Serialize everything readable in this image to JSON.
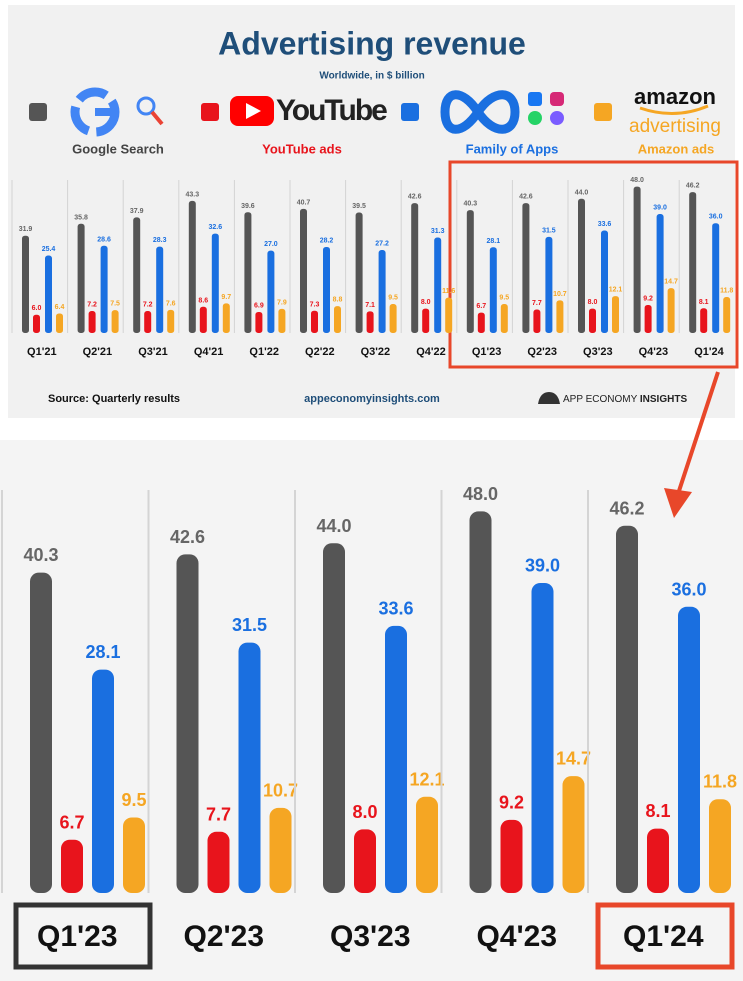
{
  "chart_data": [
    {
      "type": "bar",
      "title": "Advertising revenue",
      "subtitle": "Worldwide, in $ billion",
      "categories": [
        "Q1'21",
        "Q2'21",
        "Q3'21",
        "Q4'21",
        "Q1'22",
        "Q2'22",
        "Q3'22",
        "Q4'22",
        "Q1'23",
        "Q2'23",
        "Q3'23",
        "Q4'23",
        "Q1'24"
      ],
      "series": [
        {
          "name": "Google Search",
          "color": "#555555",
          "values": [
            31.9,
            35.8,
            37.9,
            43.3,
            39.6,
            40.7,
            39.5,
            42.6,
            40.3,
            42.6,
            44.0,
            48.0,
            46.2
          ],
          "value_labels": [
            "31.9",
            "35.8",
            "37.9",
            "43.3",
            "39.6",
            "40.7",
            "39.5",
            "42.6",
            "40.3",
            "42.6",
            "44.0",
            "48.0",
            "46.2"
          ]
        },
        {
          "name": "YouTube ads",
          "color": "#e8141c",
          "values": [
            6.0,
            7.2,
            7.2,
            8.6,
            6.9,
            7.3,
            7.1,
            8.0,
            6.7,
            7.7,
            8.0,
            9.2,
            8.1
          ],
          "value_labels": [
            "6.0",
            "7.2",
            "7.2",
            "8.6",
            "6.9",
            "7.3",
            "7.1",
            "8.0",
            "6.7",
            "7.7",
            "8.0",
            "9.2",
            "8.1"
          ]
        },
        {
          "name": "Family of Apps",
          "color": "#1a6fe0",
          "values": [
            25.4,
            28.6,
            28.3,
            32.6,
            27.0,
            28.2,
            27.2,
            31.3,
            28.1,
            31.5,
            33.6,
            39.0,
            36.0
          ],
          "value_labels": [
            "25.4",
            "28.6",
            "28.3",
            "32.6",
            "27.0",
            "28.2",
            "27.2",
            "31.3",
            "28.1",
            "31.5",
            "33.6",
            "39.0",
            "36.0"
          ]
        },
        {
          "name": "Amazon ads",
          "color": "#f5a623",
          "values": [
            6.4,
            7.5,
            7.6,
            9.7,
            7.9,
            8.8,
            9.5,
            11.6,
            9.5,
            10.7,
            12.1,
            14.7,
            11.8
          ],
          "value_labels": [
            "6.4",
            "7.5",
            "7.6",
            "9.7",
            "7.9",
            "8.8",
            "9.5",
            "11.6",
            "9.5",
            "10.7",
            "12.1",
            "14.7",
            "11.8"
          ]
        }
      ]
    },
    {
      "type": "bar",
      "categories": [
        "Q1'23",
        "Q2'23",
        "Q3'23",
        "Q4'23",
        "Q1'24"
      ],
      "series": [
        {
          "name": "Google Search",
          "color": "#555555",
          "values": [
            40.3,
            42.6,
            44.0,
            48.0,
            46.2
          ],
          "value_labels": [
            "40.3",
            "42.6",
            "44.0",
            "48.0",
            "46.2"
          ]
        },
        {
          "name": "YouTube ads",
          "color": "#e8141c",
          "values": [
            6.7,
            7.7,
            8.0,
            9.2,
            8.1
          ],
          "value_labels": [
            "6.7",
            "7.7",
            "8.0",
            "9.2",
            "8.1"
          ]
        },
        {
          "name": "Family of Apps",
          "color": "#1a6fe0",
          "values": [
            28.1,
            31.5,
            33.6,
            39.0,
            36.0
          ],
          "value_labels": [
            "28.1",
            "31.5",
            "33.6",
            "39.0",
            "36.0"
          ]
        },
        {
          "name": "Amazon ads",
          "color": "#f5a623",
          "values": [
            9.5,
            10.7,
            12.1,
            14.7,
            11.8
          ],
          "value_labels": [
            "9.5",
            "10.7",
            "12.1",
            "14.7",
            "11.8"
          ]
        }
      ]
    }
  ],
  "logos": {
    "youtube": "YouTube",
    "amazon": "amazon",
    "amazon_sub": "advertising"
  },
  "footer": {
    "source": "Source: Quarterly results",
    "site": "appeconomyinsights.com",
    "brand": "APP ECONOMY",
    "brand_bold": "INSIGHTS"
  }
}
